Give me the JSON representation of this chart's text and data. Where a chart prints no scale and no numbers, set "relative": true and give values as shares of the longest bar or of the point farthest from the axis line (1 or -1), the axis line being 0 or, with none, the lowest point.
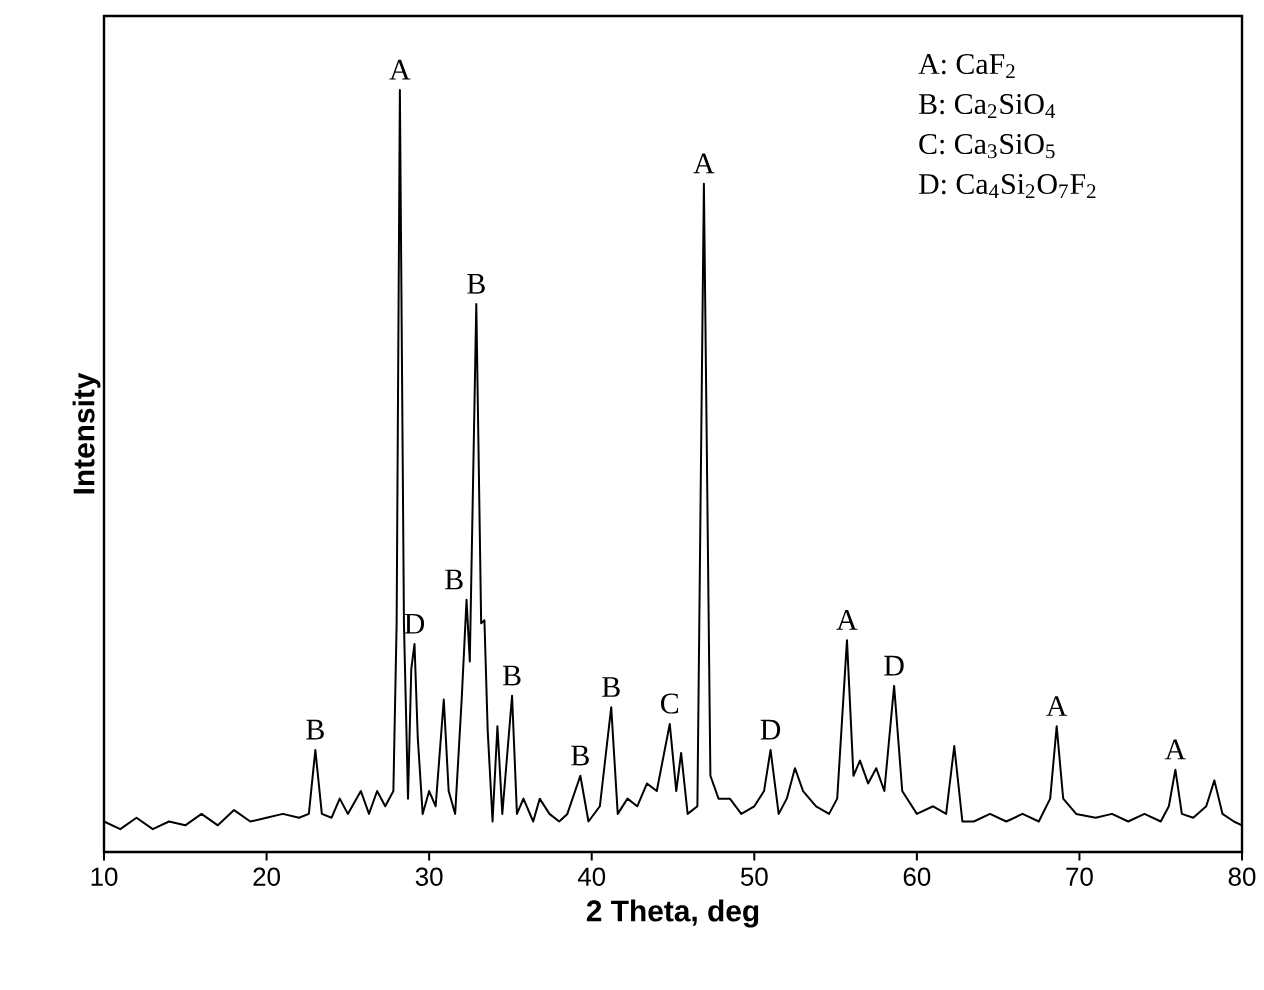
{
  "chart_data": {
    "type": "line",
    "relative": true,
    "xlabel": "2 Theta, deg",
    "ylabel": "Intensity",
    "xlim": [
      10,
      80
    ],
    "xticks": [
      10,
      20,
      30,
      40,
      50,
      60,
      70,
      80
    ],
    "series": [
      {
        "color": "#000000",
        "x": [
          10,
          11,
          12,
          13,
          14,
          15,
          16,
          17,
          18,
          19,
          20,
          21,
          22,
          22.6,
          23.0,
          23.4,
          24,
          24.5,
          25,
          25.8,
          26.3,
          26.8,
          27.3,
          27.8,
          28.0,
          28.2,
          28.45,
          28.7,
          28.9,
          29.1,
          29.3,
          29.6,
          30.0,
          30.4,
          30.9,
          31.2,
          31.6,
          32.0,
          32.3,
          32.5,
          32.9,
          33.2,
          33.4,
          33.6,
          33.9,
          34.2,
          34.5,
          35.1,
          35.4,
          35.8,
          36.4,
          36.8,
          37.4,
          38.0,
          38.5,
          39.3,
          39.8,
          40.5,
          41.2,
          41.6,
          42.2,
          42.8,
          43.4,
          44.0,
          44.8,
          45.2,
          45.5,
          45.9,
          46.5,
          46.9,
          47.3,
          47.8,
          48.5,
          49.2,
          50.0,
          50.6,
          51.0,
          51.5,
          52.0,
          52.5,
          53.0,
          53.8,
          54.6,
          55.1,
          55.7,
          56.1,
          56.5,
          57.0,
          57.5,
          58.0,
          58.6,
          59.1,
          60.0,
          61.0,
          61.8,
          62.3,
          62.8,
          63.5,
          64.5,
          65.5,
          66.5,
          67.5,
          68.2,
          68.6,
          69.0,
          69.8,
          71.0,
          72.0,
          73.0,
          74.0,
          75.0,
          75.5,
          75.9,
          76.3,
          77.0,
          77.8,
          78.3,
          78.8,
          79.5,
          80
        ],
        "values": [
          0.04,
          0.03,
          0.045,
          0.03,
          0.04,
          0.035,
          0.05,
          0.035,
          0.055,
          0.04,
          0.045,
          0.05,
          0.045,
          0.05,
          0.134,
          0.05,
          0.045,
          0.07,
          0.05,
          0.08,
          0.05,
          0.08,
          0.06,
          0.08,
          0.3,
          1.0,
          0.3,
          0.07,
          0.24,
          0.273,
          0.15,
          0.05,
          0.08,
          0.06,
          0.2,
          0.08,
          0.05,
          0.2,
          0.331,
          0.25,
          0.719,
          0.3,
          0.304,
          0.16,
          0.04,
          0.165,
          0.05,
          0.205,
          0.05,
          0.07,
          0.04,
          0.07,
          0.05,
          0.04,
          0.05,
          0.1,
          0.04,
          0.06,
          0.19,
          0.05,
          0.07,
          0.06,
          0.09,
          0.08,
          0.168,
          0.08,
          0.13,
          0.05,
          0.06,
          0.877,
          0.1,
          0.07,
          0.07,
          0.05,
          0.06,
          0.08,
          0.134,
          0.05,
          0.07,
          0.11,
          0.08,
          0.06,
          0.05,
          0.07,
          0.278,
          0.1,
          0.12,
          0.09,
          0.11,
          0.08,
          0.218,
          0.08,
          0.05,
          0.06,
          0.05,
          0.139,
          0.04,
          0.04,
          0.05,
          0.04,
          0.05,
          0.04,
          0.07,
          0.165,
          0.07,
          0.05,
          0.045,
          0.05,
          0.04,
          0.05,
          0.04,
          0.06,
          0.108,
          0.05,
          0.045,
          0.06,
          0.094,
          0.05,
          0.04,
          0.035
        ]
      }
    ],
    "annotations": [
      {
        "text": "B",
        "x": 23.0,
        "y": 0.134
      },
      {
        "text": "A",
        "x": 28.2,
        "y": 1.0
      },
      {
        "text": "D",
        "x": 29.1,
        "y": 0.273
      },
      {
        "text": "B",
        "x": 32.3,
        "y": 0.331
      },
      {
        "text": "B",
        "x": 32.9,
        "y": 0.719
      },
      {
        "text": "B",
        "x": 35.1,
        "y": 0.205
      },
      {
        "text": "B",
        "x": 39.3,
        "y": 0.1
      },
      {
        "text": "B",
        "x": 41.2,
        "y": 0.19
      },
      {
        "text": "C",
        "x": 44.8,
        "y": 0.168
      },
      {
        "text": "A",
        "x": 46.9,
        "y": 0.877
      },
      {
        "text": "D",
        "x": 51.0,
        "y": 0.134
      },
      {
        "text": "A",
        "x": 55.7,
        "y": 0.278
      },
      {
        "text": "D",
        "x": 58.6,
        "y": 0.218
      },
      {
        "text": "A",
        "x": 68.6,
        "y": 0.165
      },
      {
        "text": "A",
        "x": 75.9,
        "y": 0.108
      },
      "A: CaF$_{2}$",
      "B: Ca$_{2}$SiO$_{4}$",
      "C: Ca$_{3}$SiO$_{5}$",
      "D: Ca$_{4}$Si$_{2}$O$_{7}$F$_{2}$"
    ]
  }
}
